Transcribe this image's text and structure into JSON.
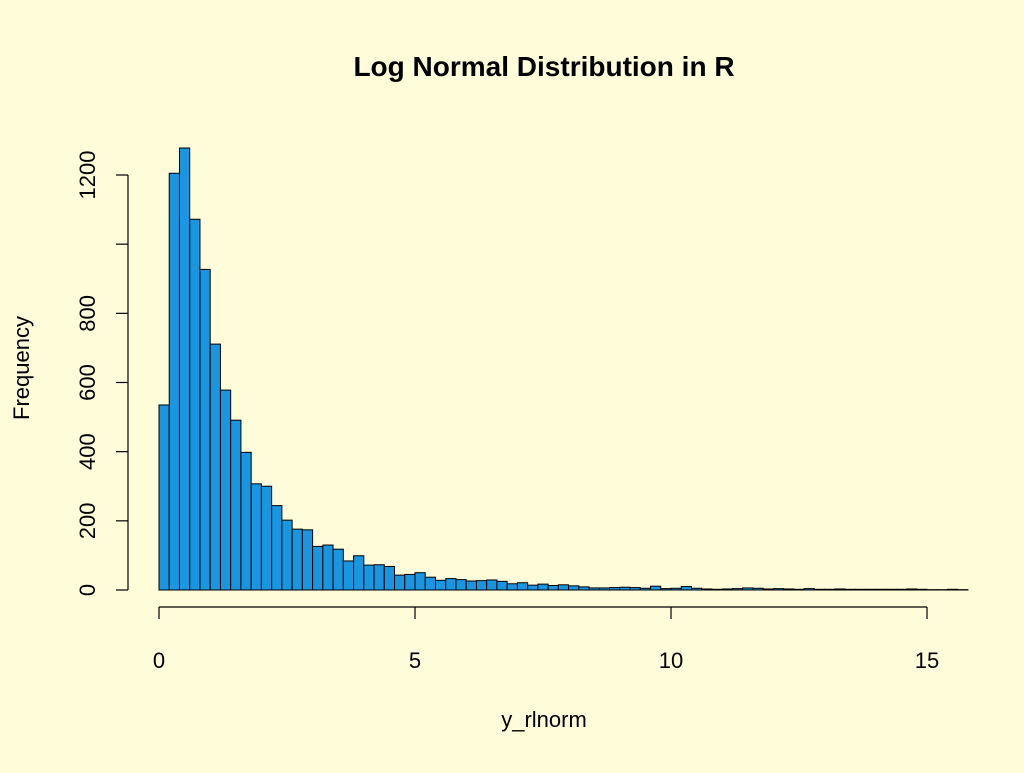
{
  "colors": {
    "background": "#fffcd9",
    "bar_fill": "#1a95e0",
    "bar_stroke": "#000000",
    "axis": "#000000"
  },
  "chart_data": {
    "type": "bar",
    "title": "Log Normal Distribution in R",
    "xlabel": "y_rlnorm",
    "ylabel": "Frequency",
    "xlim": [
      0,
      15.6
    ],
    "ylim": [
      0,
      1280
    ],
    "x_ticks": [
      0,
      5,
      10,
      15
    ],
    "y_ticks": [
      0,
      200,
      400,
      600,
      800,
      1000,
      1200
    ],
    "y_tick_labels": [
      "0",
      "200",
      "400",
      "600",
      "800",
      "",
      "1200"
    ],
    "bin_width": 0.2,
    "bin_start": 0,
    "grid": false,
    "legend": "none",
    "values": [
      535,
      1205,
      1278,
      1072,
      927,
      711,
      578,
      491,
      398,
      307,
      300,
      244,
      202,
      176,
      174,
      126,
      130,
      118,
      84,
      99,
      72,
      73,
      68,
      43,
      45,
      50,
      37,
      28,
      33,
      30,
      26,
      27,
      29,
      25,
      18,
      21,
      14,
      17,
      13,
      15,
      12,
      9,
      6,
      6,
      7,
      8,
      7,
      5,
      11,
      4,
      5,
      10,
      5,
      3,
      2,
      3,
      4,
      6,
      5,
      3,
      4,
      3,
      2,
      4,
      2,
      2,
      3,
      2,
      2,
      2,
      2,
      2,
      2,
      3,
      2,
      1,
      1,
      2,
      1
    ]
  }
}
